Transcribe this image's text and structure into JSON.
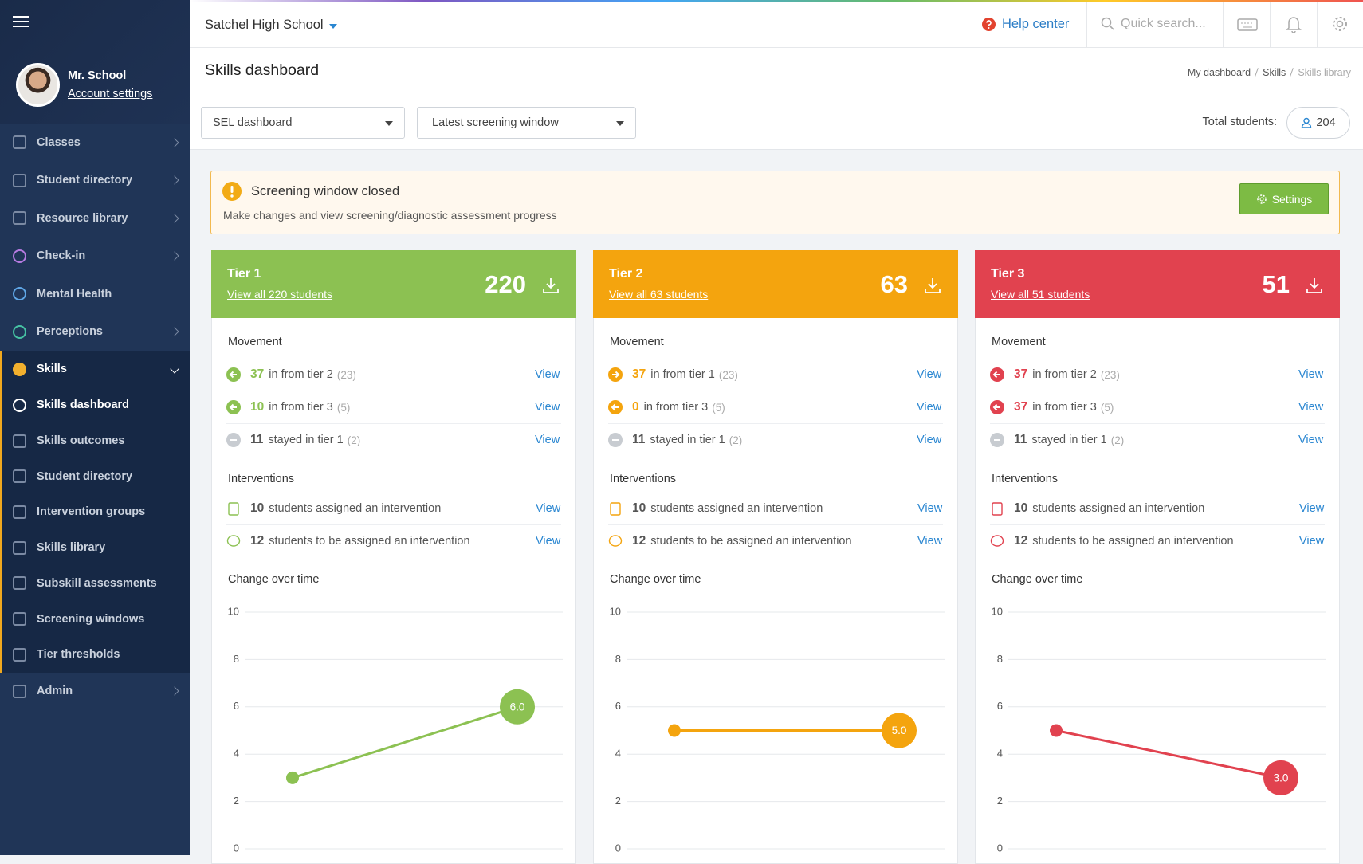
{
  "header": {
    "school": "Satchel High School",
    "help": "Help center",
    "search_placeholder": "Quick search..."
  },
  "user": {
    "name": "Mr. School",
    "account_link": "Account settings"
  },
  "nav": [
    {
      "label": "Classes",
      "submenu": true
    },
    {
      "label": "Student directory",
      "submenu": true
    },
    {
      "label": "Resource library",
      "submenu": true
    },
    {
      "label": "Check-in",
      "submenu": true
    },
    {
      "label": "Mental Health",
      "submenu": false
    },
    {
      "label": "Perceptions",
      "submenu": true
    },
    {
      "label": "Skills",
      "submenu": true,
      "expanded": true,
      "children": [
        {
          "label": "Skills dashboard",
          "active": true
        },
        {
          "label": "Skills outcomes"
        },
        {
          "label": "Student directory"
        },
        {
          "label": "Intervention groups"
        },
        {
          "label": "Skills library"
        },
        {
          "label": "Subskill assessments"
        },
        {
          "label": "Screening windows"
        },
        {
          "label": "Tier thresholds"
        }
      ]
    },
    {
      "label": "Admin",
      "submenu": true
    }
  ],
  "page": {
    "title": "Skills dashboard",
    "breadcrumbs": [
      "My dashboard",
      "Skills",
      "Skills library"
    ]
  },
  "filters": {
    "dashboard": "SEL dashboard",
    "window": "Latest screening window",
    "total_label": "Total students:",
    "total": 204
  },
  "alert": {
    "title": "Screening window closed",
    "text": "Make changes and view screening/diagnostic assessment progress",
    "button": "Settings"
  },
  "tiers": [
    {
      "name": "Tier 1",
      "link": "View all 220 students",
      "count": 220,
      "color": "#8cc152",
      "movement_title": "Movement",
      "movement": [
        {
          "count": 37,
          "text": "in from tier 2",
          "previous": "(23)",
          "action": "View"
        },
        {
          "count": 10,
          "text": "in from tier 3",
          "previous": "(5)",
          "action": "View"
        },
        {
          "count": 11,
          "text": "stayed in tier 1",
          "previous": "(2)",
          "action": "View"
        }
      ],
      "interventions_title": "Interventions",
      "interventions": [
        {
          "count": 10,
          "text": "students assigned an intervention",
          "action": "View"
        },
        {
          "count": 12,
          "text": "students to be assigned an intervention",
          "action": "View"
        }
      ],
      "chart": {
        "type": "line",
        "title": "Change over time",
        "values": [
          3,
          6
        ],
        "value_labels": [
          null,
          "6.0"
        ],
        "ylim": [
          0,
          10
        ],
        "yticks": [
          0,
          2,
          4,
          6,
          8,
          10
        ],
        "grid": true
      }
    },
    {
      "name": "Tier 2",
      "link": "View all 63 students",
      "count": 63,
      "color": "#f4a40e",
      "movement_title": "Movement",
      "movement": [
        {
          "count": 37,
          "text": "in from tier 1",
          "previous": "(23)",
          "action": "View"
        },
        {
          "count": 0,
          "text": "in from tier 3",
          "previous": "(5)",
          "action": "View"
        },
        {
          "count": 11,
          "text": "stayed in tier 1",
          "previous": "(2)",
          "action": "View"
        }
      ],
      "interventions_title": "Interventions",
      "interventions": [
        {
          "count": 10,
          "text": "students assigned an intervention",
          "action": "View"
        },
        {
          "count": 12,
          "text": "students to be assigned an intervention",
          "action": "View"
        }
      ],
      "chart": {
        "type": "line",
        "title": "Change over time",
        "values": [
          5,
          5
        ],
        "value_labels": [
          null,
          "5.0"
        ],
        "ylim": [
          0,
          10
        ],
        "yticks": [
          0,
          2,
          4,
          6,
          8,
          10
        ],
        "grid": true
      }
    },
    {
      "name": "Tier 3",
      "link": "View all 51 students",
      "count": 51,
      "color": "#e1424f",
      "movement_title": "Movement",
      "movement": [
        {
          "count": 37,
          "text": "in from tier 2",
          "previous": "(23)",
          "action": "View"
        },
        {
          "count": 37,
          "text": "in from tier 3",
          "previous": "(5)",
          "action": "View"
        },
        {
          "count": 11,
          "text": "stayed in tier 1",
          "previous": "(2)",
          "action": "View"
        }
      ],
      "interventions_title": "Interventions",
      "interventions": [
        {
          "count": 10,
          "text": "students assigned an intervention",
          "action": "View"
        },
        {
          "count": 12,
          "text": "students to be assigned an intervention",
          "action": "View"
        }
      ],
      "chart": {
        "type": "line",
        "title": "Change over time",
        "values": [
          5,
          3
        ],
        "value_labels": [
          null,
          "3.0"
        ],
        "ylim": [
          0,
          10
        ],
        "yticks": [
          0,
          2,
          4,
          6,
          8,
          10
        ],
        "grid": true
      }
    }
  ]
}
